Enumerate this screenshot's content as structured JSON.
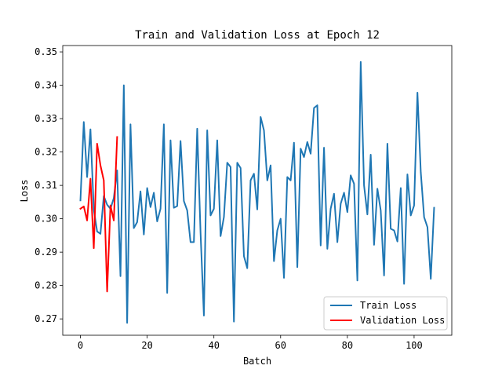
{
  "chart_data": {
    "type": "line",
    "title": "Train and Validation Loss at Epoch 12",
    "xlabel": "Batch",
    "ylabel": "Loss",
    "xlim": [
      -5.3,
      111.3
    ],
    "ylim": [
      0.2651,
      0.3519
    ],
    "xticks": [
      0,
      20,
      40,
      60,
      80,
      100
    ],
    "yticks": [
      0.27,
      0.28,
      0.29,
      0.3,
      0.31,
      0.32,
      0.33,
      0.34,
      0.35
    ],
    "ytick_labels": [
      "0.27",
      "0.28",
      "0.29",
      "0.30",
      "0.31",
      "0.32",
      "0.33",
      "0.34",
      "0.35"
    ],
    "grid": false,
    "legend_position": "lower right",
    "series": [
      {
        "name": "Train Loss",
        "color": "#1f77b4",
        "x": [
          0,
          1,
          2,
          3,
          4,
          5,
          6,
          7,
          8,
          9,
          10,
          11,
          12,
          13,
          14,
          15,
          16,
          17,
          18,
          19,
          20,
          21,
          22,
          23,
          24,
          25,
          26,
          27,
          28,
          29,
          30,
          31,
          32,
          33,
          34,
          35,
          36,
          37,
          38,
          39,
          40,
          41,
          42,
          43,
          44,
          45,
          46,
          47,
          48,
          49,
          50,
          51,
          52,
          53,
          54,
          55,
          56,
          57,
          58,
          59,
          60,
          61,
          62,
          63,
          64,
          65,
          66,
          67,
          68,
          69,
          70,
          71,
          72,
          73,
          74,
          75,
          76,
          77,
          78,
          79,
          80,
          81,
          82,
          83,
          84,
          85,
          86,
          87,
          88,
          89,
          90,
          91,
          92,
          93,
          94,
          95,
          96,
          97,
          98,
          99,
          100,
          101,
          102,
          103,
          104,
          105,
          106
        ],
        "y": [
          0.3055,
          0.329,
          0.3125,
          0.3268,
          0.3028,
          0.2962,
          0.2955,
          0.3068,
          0.3042,
          0.303,
          0.3062,
          0.3145,
          0.2828,
          0.34,
          0.2688,
          0.3283,
          0.2972,
          0.299,
          0.3082,
          0.2953,
          0.3092,
          0.3035,
          0.3078,
          0.2992,
          0.303,
          0.3283,
          0.2778,
          0.3235,
          0.3033,
          0.3038,
          0.3233,
          0.3053,
          0.3025,
          0.293,
          0.293,
          0.327,
          0.2958,
          0.271,
          0.3265,
          0.301,
          0.303,
          0.3235,
          0.2948,
          0.3005,
          0.3168,
          0.3155,
          0.2692,
          0.3168,
          0.3152,
          0.2888,
          0.2852,
          0.3115,
          0.3135,
          0.3028,
          0.3305,
          0.3265,
          0.3115,
          0.316,
          0.2873,
          0.2965,
          0.3,
          0.2823,
          0.3125,
          0.3115,
          0.3228,
          0.2855,
          0.321,
          0.3185,
          0.323,
          0.3195,
          0.3332,
          0.334,
          0.292,
          0.3213,
          0.291,
          0.303,
          0.3075,
          0.293,
          0.3045,
          0.3078,
          0.302,
          0.313,
          0.3105,
          0.2815,
          0.347,
          0.31,
          0.3013,
          0.3192,
          0.2922,
          0.309,
          0.3025,
          0.283,
          0.3225,
          0.297,
          0.2965,
          0.2932,
          0.3092,
          0.2805,
          0.3133,
          0.301,
          0.304,
          0.3378,
          0.314,
          0.3005,
          0.2975,
          0.282,
          0.3033
        ]
      },
      {
        "name": "Validation Loss",
        "color": "#ff0000",
        "x": [
          0,
          1,
          2,
          3,
          4,
          5,
          6,
          7,
          8,
          9,
          10,
          11
        ],
        "y": [
          0.303,
          0.3037,
          0.2995,
          0.312,
          0.2912,
          0.3225,
          0.316,
          0.3115,
          0.2782,
          0.304,
          0.2995,
          0.3245
        ]
      }
    ]
  }
}
